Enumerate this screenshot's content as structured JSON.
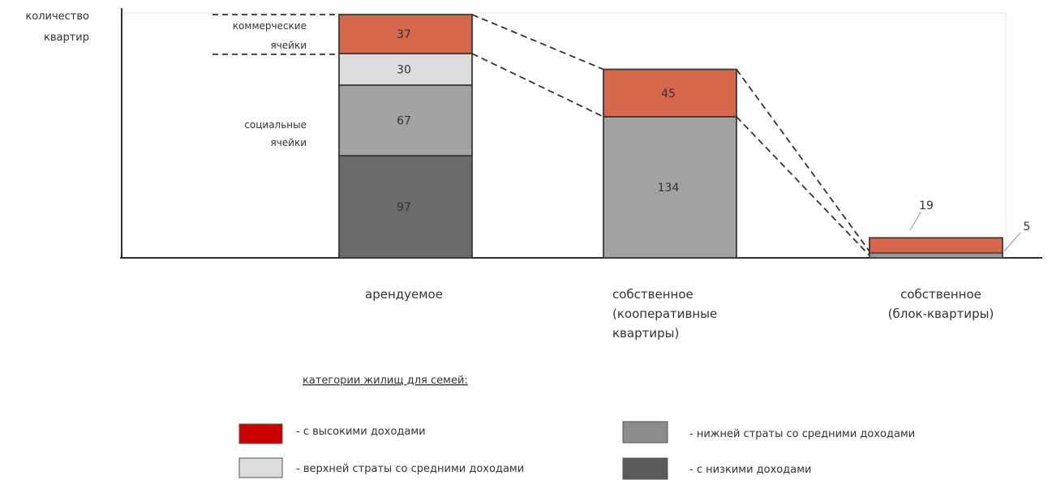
{
  "chart_data": {
    "type": "bar",
    "stacked": true,
    "ylabel": [
      "количество",
      "квартир"
    ],
    "categories": [
      [
        "арендуемое"
      ],
      [
        "собственное",
        "(кооперативные",
        "квартиры)"
      ],
      [
        "собственное",
        "(блок-квартиры)"
      ]
    ],
    "series": [
      {
        "name": "- с низкими доходами",
        "color": "#6b6b6b",
        "values": [
          97,
          0,
          0
        ]
      },
      {
        "name": "- нижней страты со средними доходами",
        "color": "#a3a3a3",
        "values": [
          67,
          134,
          0
        ]
      },
      {
        "name": "- верхней страты со средними доходами",
        "color": "#dcdcdc",
        "values": [
          30,
          0,
          0
        ]
      },
      {
        "name": "- с высокими доходами",
        "color": "#d6674a",
        "values": [
          37,
          45,
          19
        ]
      }
    ],
    "value_labels": [
      [
        "97",
        "67",
        "30",
        "37"
      ],
      [
        "",
        "134",
        "",
        "45"
      ],
      [
        "",
        "",
        "",
        "19"
      ]
    ],
    "extra_value_label": "5",
    "annotations": {
      "commercial": [
        "коммерческие",
        "ячейки"
      ],
      "social": [
        "социальные",
        "ячейки"
      ]
    },
    "legend": {
      "title": "категории жилищ для семей:",
      "swatch_colors": [
        "#cc0000",
        "#dcdcdc",
        "#8c8c8c",
        "#5a5a5a"
      ]
    },
    "ylim": [
      0,
      231
    ],
    "grid": false
  }
}
